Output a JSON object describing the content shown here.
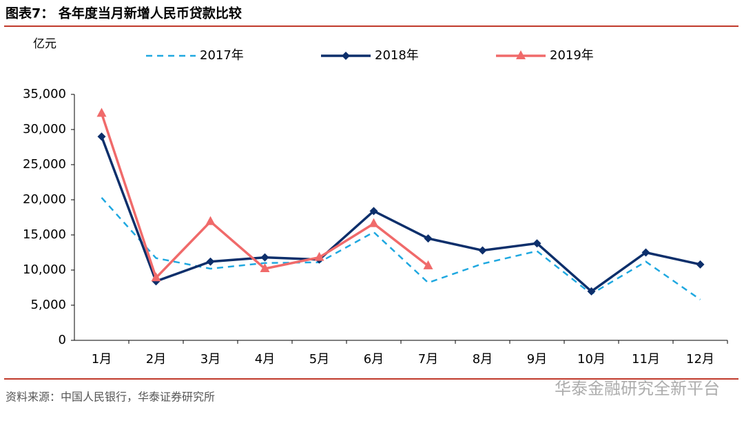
{
  "chart_data": {
    "type": "line",
    "title": "图表7： 各年度当月新增人民币贷款比较",
    "y_label": "亿元",
    "source": "资料来源：中国人民银行，华泰证券研究所",
    "watermark": "华泰金融研究全新平台",
    "categories": [
      "1月",
      "2月",
      "3月",
      "4月",
      "5月",
      "6月",
      "7月",
      "8月",
      "9月",
      "10月",
      "11月",
      "12月"
    ],
    "series": [
      {
        "name": "2017年",
        "color": "#1fa8e0",
        "dash": true,
        "marker": "none",
        "values": [
          20300,
          11700,
          10200,
          11000,
          11100,
          15400,
          8200,
          10900,
          12700,
          6600,
          11200,
          5800
        ]
      },
      {
        "name": "2018年",
        "color": "#0d2f6b",
        "dash": false,
        "marker": "diamond",
        "values": [
          29000,
          8400,
          11200,
          11800,
          11500,
          18400,
          14500,
          12800,
          13800,
          6970,
          12500,
          10800
        ]
      },
      {
        "name": "2019年",
        "color": "#f06a6a",
        "dash": false,
        "marker": "triangle",
        "values": [
          32300,
          8900,
          16900,
          10200,
          11800,
          16600,
          10600,
          null,
          null,
          null,
          null,
          null
        ]
      }
    ],
    "ylim": [
      0,
      35000
    ],
    "yticks": [
      0,
      {
        "value": 5000,
        "label": "5,000"
      },
      {
        "value": 10000,
        "label": "10,000"
      },
      {
        "value": 15000,
        "label": "15,000"
      },
      {
        "value": 20000,
        "label": "20,000"
      },
      {
        "value": 25000,
        "label": "25,000"
      },
      {
        "value": 30000,
        "label": "30,000"
      },
      {
        "value": 35000,
        "label": "35,000"
      }
    ]
  }
}
